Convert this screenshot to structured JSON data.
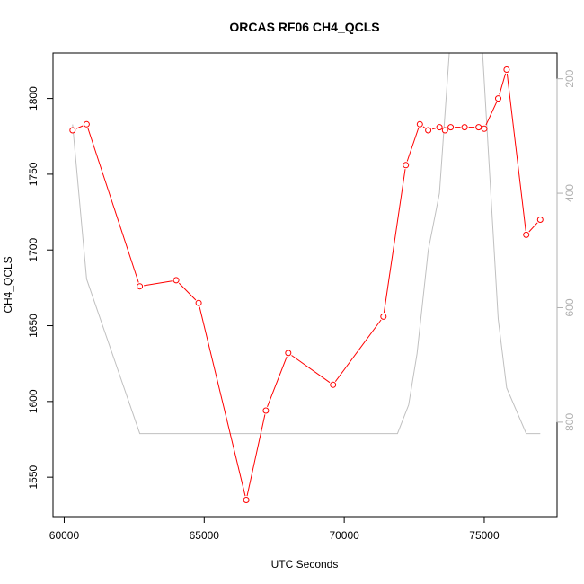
{
  "chart_data": {
    "type": "line",
    "title": "ORCAS RF06 CH4_QCLS",
    "xlabel": "UTC Seconds",
    "ylabel": "CH4_QCLS",
    "xlim": [
      59600,
      77600
    ],
    "ylim": [
      1524,
      1830
    ],
    "y2lim": [
      965,
      155
    ],
    "x_ticks": [
      60000,
      65000,
      70000,
      75000
    ],
    "y_ticks": [
      1550,
      1600,
      1650,
      1700,
      1750,
      1800
    ],
    "y2_ticks": [
      200,
      400,
      600,
      800
    ],
    "series": [
      {
        "role": "primary",
        "color": "#ff0000",
        "marker": "open-circle",
        "x": [
          60300,
          60800,
          62700,
          64000,
          64800,
          66500,
          67200,
          68000,
          69600,
          71400,
          72200,
          72700,
          73000,
          73400,
          73600,
          73800,
          74300,
          74800,
          75000,
          75500,
          75800,
          76500,
          77000
        ],
        "y": [
          1779,
          1783,
          1676,
          1680,
          1665,
          1535,
          1594,
          1632,
          1611,
          1656,
          1756,
          1783,
          1779,
          1781,
          1779,
          1781,
          1781,
          1781,
          1780,
          1800,
          1819,
          1710,
          1720
        ]
      },
      {
        "role": "secondary",
        "axis": "right",
        "color": "#c0c0c0",
        "x": [
          60300,
          60800,
          62700,
          71400,
          71900,
          72300,
          72600,
          73000,
          73400,
          73800,
          74900,
          75500,
          75800,
          76500,
          77000
        ],
        "y": [
          280,
          550,
          820,
          820,
          820,
          770,
          680,
          500,
          400,
          120,
          120,
          620,
          740,
          820,
          820
        ]
      }
    ]
  }
}
